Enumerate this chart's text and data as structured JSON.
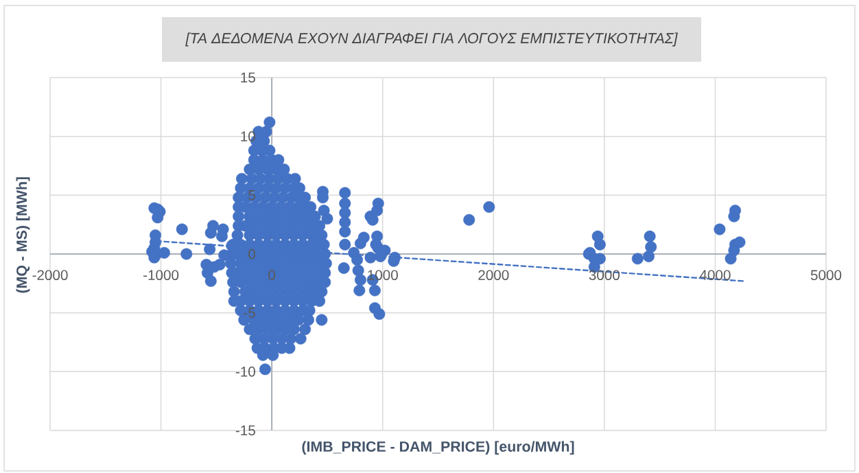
{
  "chart_data": {
    "type": "scatter",
    "title": "[ΤΑ ΔΕΔΟΜΕΝΑ ΕΧΟΥΝ ΔΙΑΓΡΑΦΕΙ ΓΙΑ ΛΟΓΟΥΣ ΕΜΠΙΣΤΕΥΤΙΚΟΤΗΤΑΣ]",
    "xlabel": "(IMB_PRICE - DAM_PRICE) [euro/MWh]",
    "ylabel": "(MQ - MS) [MWh]",
    "xlim": [
      -2000,
      5000
    ],
    "xticks": [
      -2000,
      -1000,
      0,
      1000,
      2000,
      3000,
      4000,
      5000
    ],
    "ylim": [
      -15,
      15
    ],
    "yticks": [
      -15,
      -10,
      -5,
      0,
      5,
      10,
      15
    ],
    "grid": true,
    "marker": "circle",
    "series": [
      {
        "color": "#4472c4",
        "x": [
          -20,
          -120,
          -50,
          -140,
          -70,
          -160,
          -90,
          -20,
          -160,
          -80,
          0,
          60,
          -200,
          -120,
          -40,
          40,
          110,
          -270,
          -180,
          -100,
          -20,
          60,
          140,
          210,
          -280,
          -200,
          -120,
          -40,
          40,
          120,
          200,
          250,
          -300,
          -220,
          -140,
          -60,
          20,
          100,
          180,
          250,
          300,
          -300,
          -240,
          -160,
          -80,
          0,
          80,
          160,
          240,
          300,
          350,
          -300,
          -200,
          -120,
          -40,
          40,
          120,
          200,
          280,
          340,
          390,
          -300,
          -240,
          -160,
          -80,
          0,
          80,
          160,
          240,
          320,
          390,
          430,
          -310,
          -200,
          -120,
          -40,
          40,
          120,
          200,
          280,
          360,
          420,
          450,
          -350,
          -280,
          -200,
          -120,
          -40,
          40,
          120,
          200,
          280,
          360,
          430,
          470,
          -360,
          -320,
          -240,
          -160,
          -80,
          0,
          80,
          160,
          240,
          320,
          400,
          480,
          -370,
          -280,
          -200,
          -120,
          -40,
          40,
          120,
          200,
          280,
          360,
          440,
          490,
          -360,
          -320,
          -240,
          -160,
          -80,
          0,
          80,
          160,
          240,
          320,
          400,
          480,
          -350,
          -280,
          -200,
          -120,
          -40,
          40,
          120,
          200,
          280,
          360,
          440,
          480,
          -340,
          -240,
          -160,
          -80,
          0,
          80,
          160,
          240,
          320,
          400,
          450,
          -340,
          -280,
          -200,
          -120,
          -40,
          40,
          120,
          200,
          280,
          360,
          430,
          -280,
          -200,
          -120,
          -40,
          40,
          120,
          200,
          280,
          340,
          -250,
          -160,
          -80,
          0,
          80,
          160,
          240,
          330,
          450,
          -200,
          -120,
          -40,
          40,
          120,
          200,
          300,
          -150,
          -70,
          10,
          90,
          170,
          260,
          -130,
          -60,
          20,
          90,
          160,
          -80,
          10,
          -60,
          -1060,
          -1030,
          -1010,
          -1030,
          -1050,
          -1050,
          -1060,
          -1080,
          -1040,
          -970,
          -1060,
          -810,
          -770,
          -530,
          -550,
          -440,
          -450,
          -560,
          -430,
          -590,
          -520,
          -470,
          -580,
          -550,
          -360,
          460,
          460,
          470,
          500,
          660,
          660,
          660,
          660,
          660,
          660,
          650,
          740,
          770,
          780,
          800,
          790,
          800,
          830,
          890,
          910,
          960,
          950,
          950,
          960,
          940,
          980,
          1020,
          890,
          910,
          930,
          930,
          970,
          1100,
          1110,
          1780,
          1960,
          2860,
          2870,
          2910,
          2960,
          2910,
          2940,
          2960,
          3300,
          3410,
          3420,
          3400,
          4040,
          4180,
          4170,
          4220,
          4180,
          4170,
          4140
        ],
        "values": [
          11.2,
          10.4,
          10.4,
          9.6,
          9.6,
          8.8,
          8.8,
          8.8,
          8,
          8,
          8,
          8,
          7.2,
          7.2,
          7.2,
          7.2,
          7.2,
          6.4,
          6.4,
          6.4,
          6.4,
          6.4,
          6.4,
          6.4,
          5.6,
          5.6,
          5.6,
          5.6,
          5.6,
          5.6,
          5.6,
          5.6,
          4.8,
          4.8,
          4.8,
          4.8,
          4.8,
          4.8,
          4.8,
          4.8,
          4.8,
          4,
          4,
          4,
          4,
          4,
          4,
          4,
          4,
          4,
          4,
          3.2,
          3.2,
          3.2,
          3.2,
          3.2,
          3.2,
          3.2,
          3.2,
          3.2,
          3.2,
          2.4,
          2.4,
          2.4,
          2.4,
          2.4,
          2.4,
          2.4,
          2.4,
          2.4,
          2.4,
          2.4,
          1.6,
          1.6,
          1.6,
          1.6,
          1.6,
          1.6,
          1.6,
          1.6,
          1.6,
          1.6,
          1.6,
          0.8,
          0.8,
          0.8,
          0.8,
          0.8,
          0.8,
          0.8,
          0.8,
          0.8,
          0.8,
          0.8,
          0.8,
          0,
          0,
          0,
          0,
          0,
          0,
          0,
          0,
          0,
          0,
          0,
          0,
          -0.8,
          -0.8,
          -0.8,
          -0.8,
          -0.8,
          -0.8,
          -0.8,
          -0.8,
          -0.8,
          -0.8,
          -0.8,
          -0.8,
          -1.6,
          -1.6,
          -1.6,
          -1.6,
          -1.6,
          -1.6,
          -1.6,
          -1.6,
          -1.6,
          -1.6,
          -1.6,
          -1.6,
          -2.4,
          -2.4,
          -2.4,
          -2.4,
          -2.4,
          -2.4,
          -2.4,
          -2.4,
          -2.4,
          -2.4,
          -2.4,
          -2.4,
          -3.2,
          -3.2,
          -3.2,
          -3.2,
          -3.2,
          -3.2,
          -3.2,
          -3.2,
          -3.2,
          -3.2,
          -3.2,
          -4,
          -4,
          -4,
          -4,
          -4,
          -4,
          -4,
          -4,
          -4,
          -4,
          -4,
          -4.8,
          -4.8,
          -4.8,
          -4.8,
          -4.8,
          -4.8,
          -4.8,
          -4.8,
          -4.8,
          -5.6,
          -5.6,
          -5.6,
          -5.6,
          -5.6,
          -5.6,
          -5.6,
          -5.6,
          -5.6,
          -6.4,
          -6.4,
          -6.4,
          -6.4,
          -6.4,
          -6.4,
          -6.4,
          -7.2,
          -7.2,
          -7.2,
          -7.2,
          -7.2,
          -7.2,
          -8,
          -8,
          -8,
          -8,
          -8,
          -8.6,
          -8.6,
          -9.8,
          3.9,
          3.8,
          3.6,
          3.1,
          1.6,
          1.0,
          0.5,
          0.2,
          0,
          0.1,
          -0.3,
          2.1,
          0,
          2.4,
          1.8,
          2.1,
          1.5,
          0.4,
          -0.1,
          -0.9,
          -1.1,
          -0.9,
          -1.6,
          -2.3,
          0.7,
          5.3,
          4.8,
          3.7,
          3.0,
          5.2,
          4.3,
          3.5,
          2.7,
          1.9,
          0.8,
          -1.2,
          0.1,
          -0.5,
          -1.4,
          -2.2,
          -3.1,
          0.9,
          1.4,
          3.2,
          2.9,
          4.3,
          3.7,
          1.5,
          0.5,
          0.8,
          -0.2,
          0.3,
          -0.3,
          -2.2,
          -3.1,
          -4.6,
          -5.1,
          -0.6,
          -0.3,
          2.9,
          4.0,
          0,
          0.1,
          -0.4,
          -0.4,
          -1.1,
          1.5,
          0.8,
          -0.4,
          1.5,
          0.6,
          -0.2,
          2.1,
          3.7,
          3.2,
          1.0,
          0.8,
          0.3,
          -0.4
        ]
      },
      {
        "type": "line",
        "color": "#4472c4",
        "marker": "none",
        "line_style": "dashed",
        "x": [
          -1040,
          4250
        ],
        "values": [
          1.1,
          -2.3
        ]
      }
    ]
  }
}
